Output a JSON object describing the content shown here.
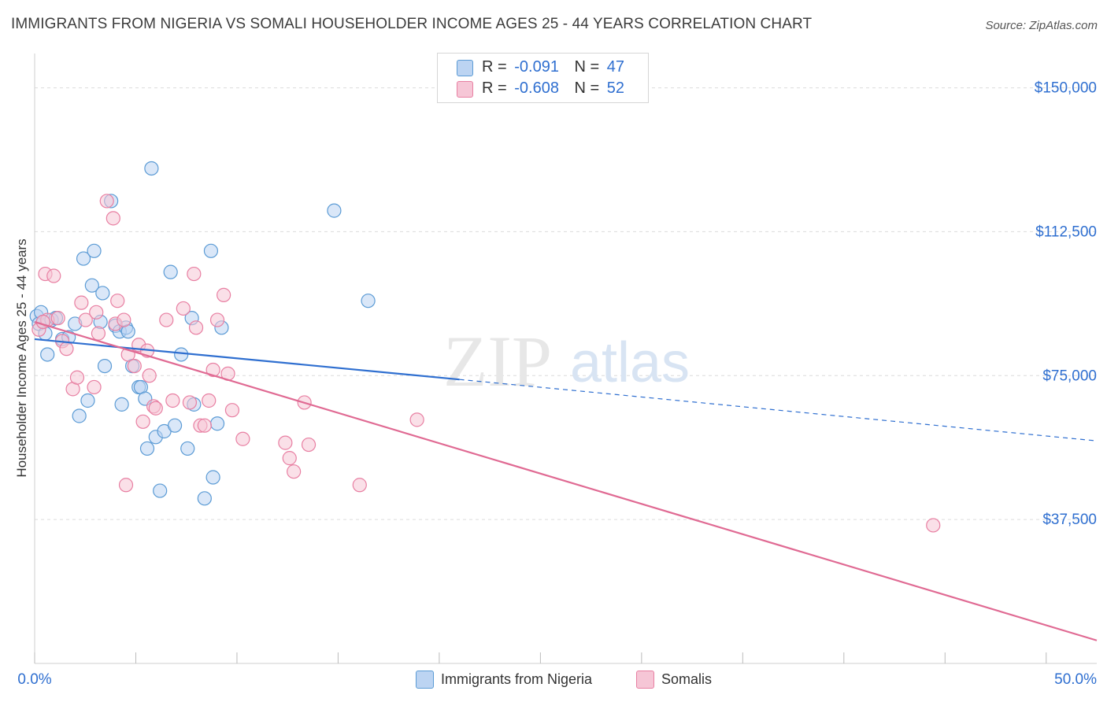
{
  "title": "IMMIGRANTS FROM NIGERIA VS SOMALI HOUSEHOLDER INCOME AGES 25 - 44 YEARS CORRELATION CHART",
  "source": "Source: ZipAtlas.com",
  "watermark": {
    "zip": "ZIP",
    "atlas": "atlas"
  },
  "colors": {
    "blue": "#5b9bd5",
    "blue_fill": "#bcd4f2",
    "blue_line": "#2f6fd0",
    "pink": "#e87fa2",
    "pink_fill": "#f6c6d6",
    "pink_line": "#e06a93",
    "value_text": "#2f6fd0"
  },
  "legend": {
    "rows": [
      {
        "r_label": "R =",
        "r_value": "-0.091",
        "n_label": "N =",
        "n_value": "47",
        "color": "#5b9bd5"
      },
      {
        "r_label": "R =",
        "r_value": "-0.608",
        "n_label": "N =",
        "n_value": "52",
        "color": "#e87fa2"
      }
    ]
  },
  "bottom_legend": [
    {
      "label": "Immigrants from Nigeria"
    },
    {
      "label": "Somalis"
    }
  ],
  "chart_data": {
    "type": "scatter",
    "title": "IMMIGRANTS FROM NIGERIA VS SOMALI HOUSEHOLDER INCOME AGES 25 - 44 YEARS CORRELATION CHART",
    "xlabel": "",
    "ylabel": "Householder Income Ages 25 - 44 years",
    "xlim": [
      0,
      50
    ],
    "ylim": [
      0,
      157500
    ],
    "x_tick_labels": [
      "0.0%",
      "50.0%"
    ],
    "y_ticks": [
      37500,
      75000,
      112500,
      150000
    ],
    "y_tick_labels": [
      "$37,500",
      "$75,000",
      "$112,500",
      "$150,000"
    ],
    "grid": true,
    "series": [
      {
        "name": "Immigrants from Nigeria",
        "color": "#5b9bd5",
        "trend": {
          "x0": 0,
          "y0": 84500,
          "x1": 20,
          "y1": 74000,
          "dash_to_x": 50,
          "dash_to_y": 58000
        },
        "points": [
          [
            0.1,
            90500
          ],
          [
            0.2,
            88500
          ],
          [
            0.3,
            91500
          ],
          [
            0.4,
            89000
          ],
          [
            0.5,
            86000
          ],
          [
            0.6,
            80500
          ],
          [
            0.8,
            89500
          ],
          [
            1.0,
            90000
          ],
          [
            1.3,
            84500
          ],
          [
            1.6,
            85000
          ],
          [
            1.9,
            88500
          ],
          [
            2.1,
            64500
          ],
          [
            2.3,
            105500
          ],
          [
            2.5,
            68500
          ],
          [
            2.7,
            98500
          ],
          [
            2.8,
            107500
          ],
          [
            3.1,
            89000
          ],
          [
            3.2,
            96500
          ],
          [
            3.3,
            77500
          ],
          [
            3.6,
            120500
          ],
          [
            3.8,
            88000
          ],
          [
            4.0,
            86500
          ],
          [
            4.1,
            67500
          ],
          [
            4.3,
            87500
          ],
          [
            4.4,
            86500
          ],
          [
            4.6,
            77500
          ],
          [
            4.9,
            72000
          ],
          [
            5.0,
            72000
          ],
          [
            5.2,
            69000
          ],
          [
            5.3,
            56000
          ],
          [
            5.5,
            129000
          ],
          [
            5.7,
            59000
          ],
          [
            5.9,
            45000
          ],
          [
            6.1,
            60500
          ],
          [
            6.4,
            102000
          ],
          [
            6.6,
            62000
          ],
          [
            6.9,
            80500
          ],
          [
            7.2,
            56000
          ],
          [
            7.4,
            90000
          ],
          [
            7.5,
            67500
          ],
          [
            8.0,
            43000
          ],
          [
            8.3,
            107500
          ],
          [
            8.4,
            48500
          ],
          [
            8.6,
            62500
          ],
          [
            8.8,
            87500
          ],
          [
            14.1,
            118000
          ],
          [
            15.7,
            94500
          ]
        ]
      },
      {
        "name": "Somalis",
        "color": "#e87fa2",
        "trend": {
          "x0": 0,
          "y0": 89000,
          "x1": 50,
          "y1": 6000
        },
        "points": [
          [
            0.2,
            87000
          ],
          [
            0.5,
            101500
          ],
          [
            0.6,
            89500
          ],
          [
            0.9,
            101000
          ],
          [
            1.1,
            90000
          ],
          [
            1.3,
            84000
          ],
          [
            1.5,
            82000
          ],
          [
            1.8,
            71500
          ],
          [
            2.0,
            74500
          ],
          [
            2.2,
            94000
          ],
          [
            2.4,
            89500
          ],
          [
            2.8,
            72000
          ],
          [
            2.9,
            91500
          ],
          [
            3.0,
            86000
          ],
          [
            3.4,
            120500
          ],
          [
            3.7,
            116000
          ],
          [
            3.8,
            88500
          ],
          [
            3.9,
            94500
          ],
          [
            4.2,
            89500
          ],
          [
            4.3,
            46500
          ],
          [
            4.4,
            80500
          ],
          [
            4.7,
            77500
          ],
          [
            4.9,
            83000
          ],
          [
            5.1,
            63000
          ],
          [
            5.3,
            81500
          ],
          [
            5.4,
            75000
          ],
          [
            5.6,
            67000
          ],
          [
            5.7,
            66500
          ],
          [
            6.2,
            89500
          ],
          [
            6.5,
            68500
          ],
          [
            7.0,
            92500
          ],
          [
            7.3,
            68000
          ],
          [
            7.5,
            101500
          ],
          [
            7.6,
            87500
          ],
          [
            7.8,
            62000
          ],
          [
            8.0,
            62000
          ],
          [
            8.2,
            68500
          ],
          [
            8.4,
            76500
          ],
          [
            8.6,
            89500
          ],
          [
            8.9,
            96000
          ],
          [
            9.1,
            75500
          ],
          [
            9.3,
            66000
          ],
          [
            9.8,
            58500
          ],
          [
            11.8,
            57500
          ],
          [
            12.0,
            53500
          ],
          [
            12.2,
            50000
          ],
          [
            12.7,
            68000
          ],
          [
            12.9,
            57000
          ],
          [
            15.3,
            46500
          ],
          [
            18.0,
            63500
          ],
          [
            42.3,
            36000
          ],
          [
            0.4,
            89000
          ]
        ]
      }
    ]
  }
}
